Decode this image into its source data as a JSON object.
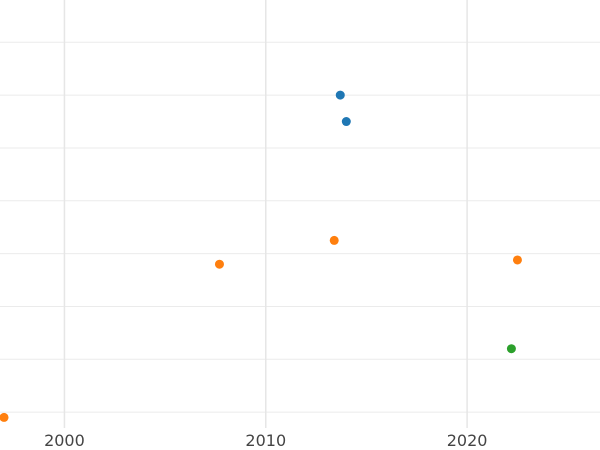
{
  "chart_data": {
    "type": "scatter",
    "title": "",
    "xlabel": "",
    "ylabel": "",
    "xlim": [
      1996.8,
      2026.6
    ],
    "ylim": [
      1.7,
      9.8
    ],
    "x_ticks": [
      2000,
      2010,
      2020
    ],
    "y_gridlines": [
      2,
      3,
      4,
      5,
      6,
      7,
      8,
      9
    ],
    "grid": true,
    "legend": "none",
    "series": [
      {
        "color": "#1f77b4",
        "points": [
          {
            "x": 2013.7,
            "y": 8.0
          },
          {
            "x": 2014.0,
            "y": 7.5
          }
        ]
      },
      {
        "color": "#ff7f0e",
        "points": [
          {
            "x": 1997.0,
            "y": 1.9
          },
          {
            "x": 2007.7,
            "y": 4.8
          },
          {
            "x": 2013.4,
            "y": 5.25
          },
          {
            "x": 2022.5,
            "y": 4.88
          }
        ]
      },
      {
        "color": "#2ca02c",
        "points": [
          {
            "x": 2022.2,
            "y": 3.2
          }
        ]
      }
    ]
  }
}
